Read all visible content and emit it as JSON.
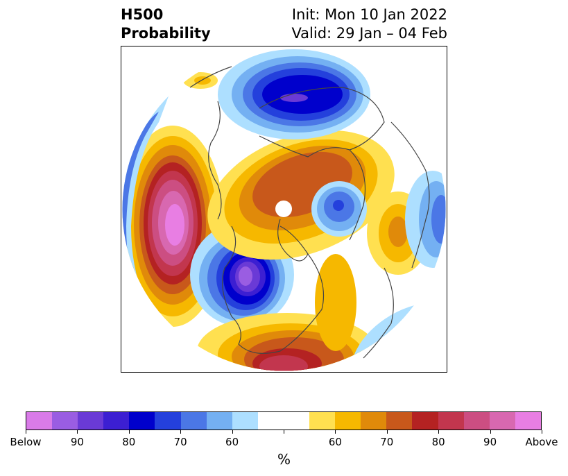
{
  "title": {
    "variable": "H500",
    "product": "Probability",
    "init": "Init: Mon 10 Jan 2022",
    "valid": "Valid: 29 Jan – 04 Feb"
  },
  "map": {
    "projection": "north-polar-stereographic",
    "content": "500 hPa height tercile probability anomalies over the Northern Hemisphere"
  },
  "colorbar": {
    "colors": [
      "#d97be8",
      "#9a5de2",
      "#6a3ad6",
      "#3c1fd2",
      "#0000cc",
      "#2440dc",
      "#4b77e6",
      "#74b0f2",
      "#addfff",
      "#ffffff",
      "#ffffff",
      "#ffe050",
      "#f6b800",
      "#e08a0a",
      "#c8581b",
      "#b42222",
      "#c2364e",
      "#cc4e82",
      "#d868b0",
      "#e87ee3"
    ],
    "tick_labels": [
      "Below",
      "90",
      "80",
      "70",
      "60",
      "",
      "60",
      "70",
      "80",
      "90",
      "Above"
    ],
    "units": "%"
  }
}
